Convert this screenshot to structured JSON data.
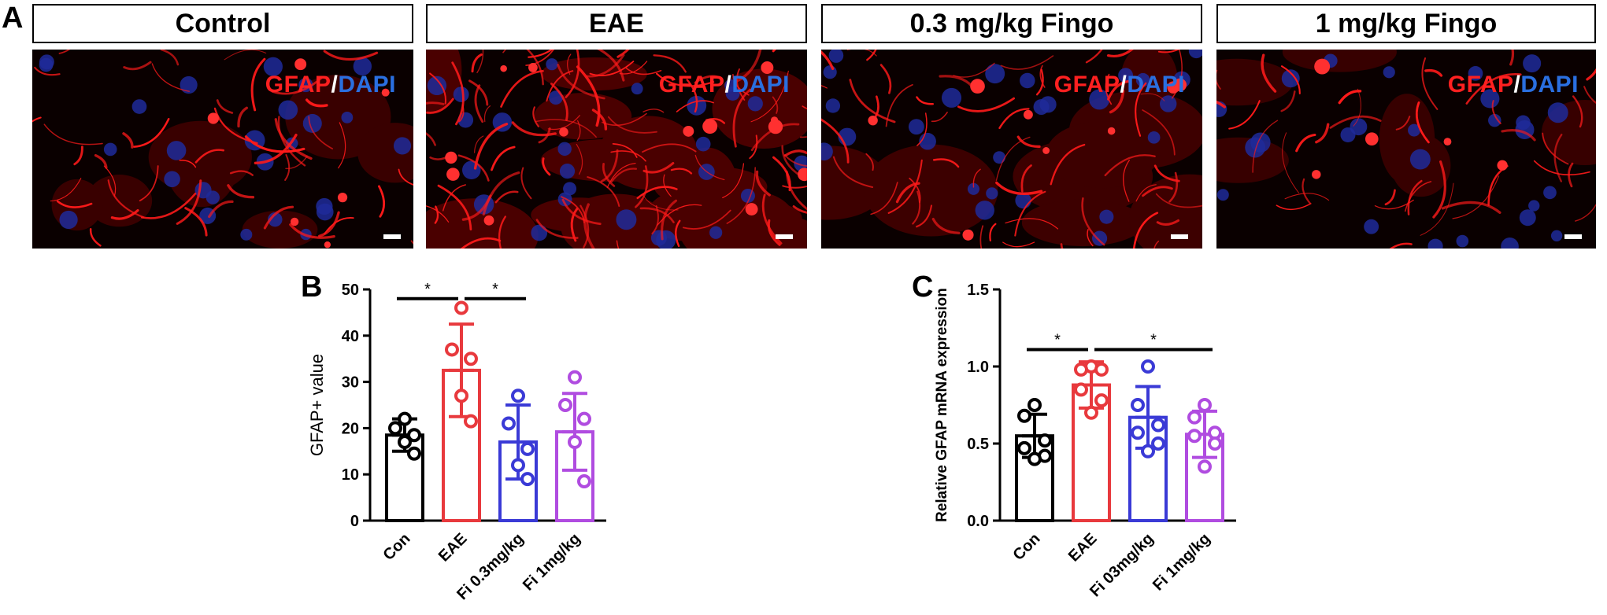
{
  "panel_a": {
    "letter": "A",
    "images": [
      {
        "title": "Control",
        "stain": "GFAP",
        "slash": "/",
        "counter": "DAPI"
      },
      {
        "title": "EAE",
        "stain": "GFAP",
        "slash": "/",
        "counter": "DAPI"
      },
      {
        "title": "0.3 mg/kg Fingo",
        "stain": "GFAP",
        "slash": "/",
        "counter": "DAPI"
      },
      {
        "title": "1 mg/kg Fingo",
        "stain": "GFAP",
        "slash": "/",
        "counter": "DAPI"
      }
    ]
  },
  "chart_data": [
    {
      "panel": "B",
      "type": "bar",
      "ylabel": "GFAP+ value",
      "xlabel": "",
      "ylim": [
        0,
        50
      ],
      "yticks": [
        "0",
        "10",
        "20",
        "30",
        "40",
        "50"
      ],
      "categories": [
        "Con",
        "EAE",
        "Fi 0.3mg/kg",
        "Fi 1mg/kg"
      ],
      "colors": [
        "#000000",
        "#e8393d",
        "#3a3ad6",
        "#b04ce0"
      ],
      "values": [
        18.5,
        32.5,
        17.0,
        19.2
      ],
      "errors": [
        3.5,
        10.0,
        8.0,
        8.3
      ],
      "points": [
        [
          22.0,
          20.0,
          18.5,
          17.0,
          14.5
        ],
        [
          46.0,
          37.0,
          35.0,
          27.0,
          21.5
        ],
        [
          27.0,
          21.0,
          15.5,
          12.0,
          9.0
        ],
        [
          31.0,
          25.0,
          22.0,
          17.0,
          8.5
        ]
      ],
      "significance": [
        {
          "from": 0,
          "to": 1,
          "label": "*",
          "y": 48
        },
        {
          "from": 1,
          "to": 2,
          "label": "*",
          "y": 48
        }
      ]
    },
    {
      "panel": "C",
      "type": "bar",
      "ylabel": "Relative GFAP mRNA expression",
      "xlabel": "",
      "ylim": [
        0,
        1.5
      ],
      "yticks": [
        "0.0",
        "0.5",
        "1.0",
        "1.5"
      ],
      "categories": [
        "Con",
        "EAE",
        "Fi 03mg/kg",
        "Fi 1mg/kg"
      ],
      "colors": [
        "#000000",
        "#e8393d",
        "#3a3ad6",
        "#b04ce0"
      ],
      "values": [
        0.55,
        0.88,
        0.67,
        0.56
      ],
      "errors": [
        0.14,
        0.15,
        0.2,
        0.15
      ],
      "points": [
        [
          0.75,
          0.68,
          0.52,
          0.47,
          0.42,
          0.4
        ],
        [
          1.0,
          0.98,
          0.98,
          0.85,
          0.78,
          0.7
        ],
        [
          1.0,
          0.75,
          0.62,
          0.57,
          0.5,
          0.45
        ],
        [
          0.75,
          0.67,
          0.57,
          0.55,
          0.5,
          0.35
        ]
      ],
      "significance": [
        {
          "from": 0,
          "to": 1,
          "label": "*",
          "y": 1.11
        },
        {
          "from": 1,
          "to": 3,
          "label": "*",
          "y": 1.11
        }
      ]
    }
  ]
}
